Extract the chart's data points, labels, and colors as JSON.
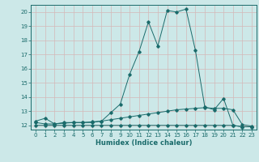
{
  "xlabel": "Humidex (Indice chaleur)",
  "bg_color": "#cce8e8",
  "grid_color": "#d4b8b8",
  "line_color": "#1a6b6b",
  "xlim": [
    -0.5,
    23.5
  ],
  "ylim": [
    11.7,
    20.5
  ],
  "yticks": [
    12,
    13,
    14,
    15,
    16,
    17,
    18,
    19,
    20
  ],
  "xticks": [
    0,
    1,
    2,
    3,
    4,
    5,
    6,
    7,
    8,
    9,
    10,
    11,
    12,
    13,
    14,
    15,
    16,
    17,
    18,
    19,
    20,
    21,
    22,
    23
  ],
  "series1_x": [
    0,
    1,
    2,
    3,
    4,
    5,
    6,
    7,
    8,
    9,
    10,
    11,
    12,
    13,
    14,
    15,
    16,
    17,
    18,
    19,
    20,
    21,
    22,
    23
  ],
  "series1_y": [
    12.3,
    12.5,
    12.1,
    12.2,
    12.2,
    12.2,
    12.2,
    12.3,
    12.9,
    13.5,
    15.6,
    17.2,
    19.3,
    17.6,
    20.1,
    20.0,
    20.2,
    17.3,
    13.3,
    13.1,
    13.9,
    12.0,
    11.9,
    11.9
  ],
  "series2_x": [
    0,
    1,
    2,
    3,
    4,
    5,
    6,
    7,
    8,
    9,
    10,
    11,
    12,
    13,
    14,
    15,
    16,
    17,
    18,
    19,
    20,
    21,
    22,
    23
  ],
  "series2_y": [
    12.2,
    12.1,
    12.1,
    12.15,
    12.2,
    12.2,
    12.25,
    12.3,
    12.4,
    12.5,
    12.6,
    12.7,
    12.8,
    12.9,
    13.0,
    13.1,
    13.15,
    13.2,
    13.25,
    13.2,
    13.2,
    13.1,
    12.05,
    11.95
  ],
  "series3_x": [
    0,
    1,
    2,
    3,
    4,
    5,
    6,
    7,
    8,
    9,
    10,
    11,
    12,
    13,
    14,
    15,
    16,
    17,
    18,
    19,
    20,
    21,
    22,
    23
  ],
  "series3_y": [
    12.0,
    12.0,
    12.0,
    12.0,
    12.0,
    12.0,
    12.0,
    12.0,
    12.0,
    12.0,
    12.0,
    12.0,
    12.0,
    12.0,
    12.0,
    12.0,
    12.0,
    12.0,
    12.0,
    12.0,
    12.0,
    12.0,
    11.9,
    11.9
  ]
}
